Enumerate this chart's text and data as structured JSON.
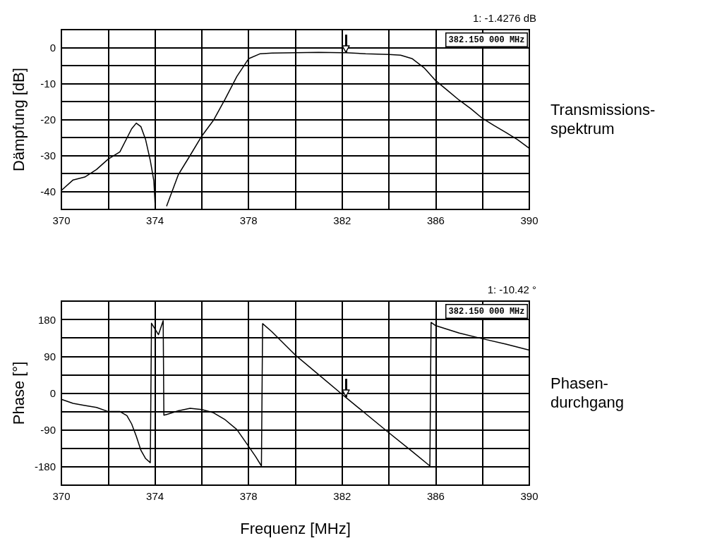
{
  "chart_data": [
    {
      "type": "line",
      "ylabel": "Dämpfung [dB]",
      "annotations": [
        "1: -1.4276 dB",
        "382.150 000 MHz",
        "Transmissions-\nspektrum"
      ],
      "ref_lines": [
        {
          "axis": "x",
          "value": 382.15
        }
      ],
      "x": [
        370,
        370.5,
        371,
        371.5,
        372,
        372.5,
        373,
        373.2,
        373.4,
        373.6,
        373.8,
        373.95,
        374.01,
        374.2,
        374.5,
        375,
        375.5,
        376,
        376.5,
        377,
        377.5,
        378,
        378.5,
        379,
        380,
        381,
        382,
        382.15,
        383,
        384,
        384.5,
        385,
        385.5,
        386,
        386.5,
        387,
        387.5,
        388,
        388.5,
        389,
        389.5,
        390
      ],
      "series": [
        {
          "color": "#000000",
          "values": [
            -39.7,
            -36.8,
            -36,
            -33.9,
            -31,
            -29,
            -22.6,
            -21,
            -22,
            -25.6,
            -31.4,
            -37,
            -44,
            null,
            -44,
            -35.3,
            -30,
            -24.6,
            -20.2,
            -14.3,
            -8,
            -3.1,
            -1.7,
            -1.5,
            -1.4,
            -1.3,
            -1.4,
            -1.4,
            -1.7,
            -1.9,
            -2.1,
            -3.1,
            -5.6,
            -9.2,
            -11.9,
            -14.6,
            -17,
            -19.7,
            -21.7,
            -23.6,
            -25.6,
            -28
          ]
        }
      ],
      "xlim": [
        370,
        390
      ],
      "xticks": [
        370,
        {
          "value": 372,
          "label": null
        },
        374,
        {
          "value": 376,
          "label": null
        },
        378,
        {
          "value": 380,
          "label": null
        },
        382,
        {
          "value": 384,
          "label": null
        },
        386,
        {
          "value": 388,
          "label": null
        },
        390
      ],
      "ylim": [
        -45,
        5
      ],
      "yticks": [
        {
          "value": -45,
          "label": null
        },
        -40,
        {
          "value": -35,
          "label": null
        },
        -30,
        {
          "value": -25,
          "label": null
        },
        -20,
        {
          "value": -15,
          "label": null
        },
        -10,
        {
          "value": -5,
          "label": null
        },
        0,
        {
          "value": 5,
          "label": null
        }
      ],
      "grid": true,
      "marker": "none",
      "line_style": "solid"
    },
    {
      "type": "line",
      "ylabel": "Phase [°]",
      "xlabel": "Frequenz [MHz]",
      "annotations": [
        "1: -10.42 °",
        "382.150 000 MHz",
        "Phasen-\ndurchgang"
      ],
      "ref_lines": [
        {
          "axis": "x",
          "value": 382.15
        }
      ],
      "x": [
        370,
        370.5,
        371,
        371.5,
        372,
        372.5,
        372.8,
        373,
        373.2,
        373.4,
        373.6,
        373.8,
        373.85,
        374.15,
        374.35,
        374.38,
        374.5,
        375,
        375.5,
        376,
        376.5,
        377,
        377.5,
        378,
        378.3,
        378.55,
        378.6,
        379,
        380,
        381,
        382,
        382.15,
        383,
        384,
        385,
        385.75,
        385.8,
        386,
        387,
        388,
        389,
        390
      ],
      "series": [
        {
          "color": "#000000",
          "values": [
            -15,
            -25,
            -30,
            -35,
            -45,
            -45,
            -55,
            -75,
            -105,
            -140,
            -160,
            -170,
            171,
            143,
            177,
            -54,
            -52,
            -43,
            -37,
            -40,
            -48,
            -65,
            -89,
            -130,
            -155,
            -178,
            170,
            150,
            93,
            45,
            -3,
            -10,
            -50,
            -97,
            -143,
            -178,
            173,
            165,
            147,
            133,
            120,
            105
          ]
        }
      ],
      "xlim": [
        370,
        390
      ],
      "xticks": [
        370,
        {
          "value": 372,
          "label": null
        },
        374,
        {
          "value": 376,
          "label": null
        },
        378,
        {
          "value": 380,
          "label": null
        },
        382,
        {
          "value": 384,
          "label": null
        },
        386,
        {
          "value": 388,
          "label": null
        },
        390
      ],
      "ylim": [
        -225,
        225
      ],
      "yticks": [
        {
          "value": -225,
          "label": null
        },
        -180,
        {
          "value": -135,
          "label": null
        },
        -90,
        {
          "value": -45,
          "label": null
        },
        0,
        {
          "value": 45,
          "label": null
        },
        90,
        {
          "value": 135,
          "label": null
        },
        180,
        {
          "value": 225,
          "label": null
        }
      ],
      "grid": true,
      "marker": "none",
      "line_style": "solid"
    }
  ]
}
